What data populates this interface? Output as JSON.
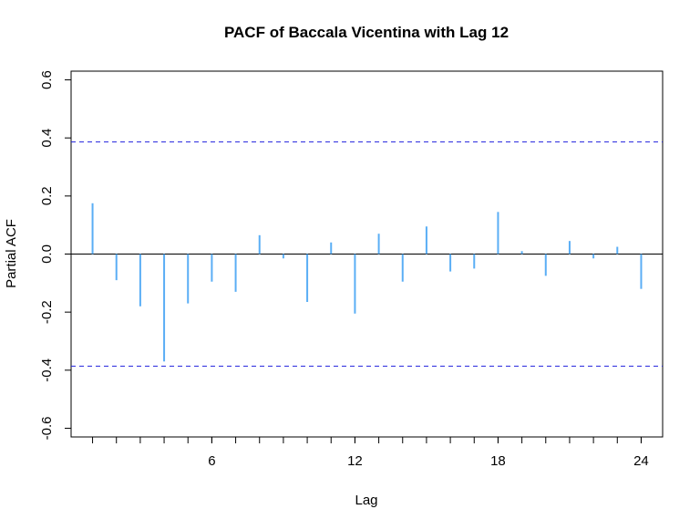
{
  "chart_data": {
    "type": "bar",
    "title": "PACF of Baccala Vicentina with Lag 12",
    "xlabel": "Lag",
    "ylabel": "Partial ACF",
    "xlim": [
      0.1,
      24.9
    ],
    "ylim": [
      -0.63,
      0.63
    ],
    "x_ticks": [
      6,
      12,
      18,
      24
    ],
    "x_tick_labels": [
      "6",
      "12",
      "18",
      "24"
    ],
    "x_minor_ticks": [
      1,
      2,
      3,
      4,
      5,
      6,
      7,
      8,
      9,
      10,
      11,
      12,
      13,
      14,
      15,
      16,
      17,
      18,
      19,
      20,
      21,
      22,
      23,
      24
    ],
    "y_ticks": [
      0.6,
      0.4,
      0.2,
      0.0,
      -0.2,
      -0.4,
      -0.6
    ],
    "y_tick_labels": [
      "0.6",
      "0.4",
      "0.2",
      "0.0",
      "-0.2",
      "-0.4",
      "-0.6"
    ],
    "confidence_bound": 0.386,
    "bar_color": "#5aaef5",
    "bound_color": "#2222dd",
    "lags": [
      1,
      2,
      3,
      4,
      5,
      6,
      7,
      8,
      9,
      10,
      11,
      12,
      13,
      14,
      15,
      16,
      17,
      18,
      19,
      20,
      21,
      22,
      23,
      24
    ],
    "values": [
      0.175,
      -0.09,
      -0.18,
      -0.37,
      -0.17,
      -0.095,
      -0.13,
      0.065,
      -0.015,
      -0.165,
      0.04,
      -0.205,
      0.07,
      -0.095,
      0.095,
      -0.06,
      -0.05,
      0.145,
      0.01,
      -0.075,
      0.045,
      -0.015,
      0.025,
      -0.12
    ]
  }
}
